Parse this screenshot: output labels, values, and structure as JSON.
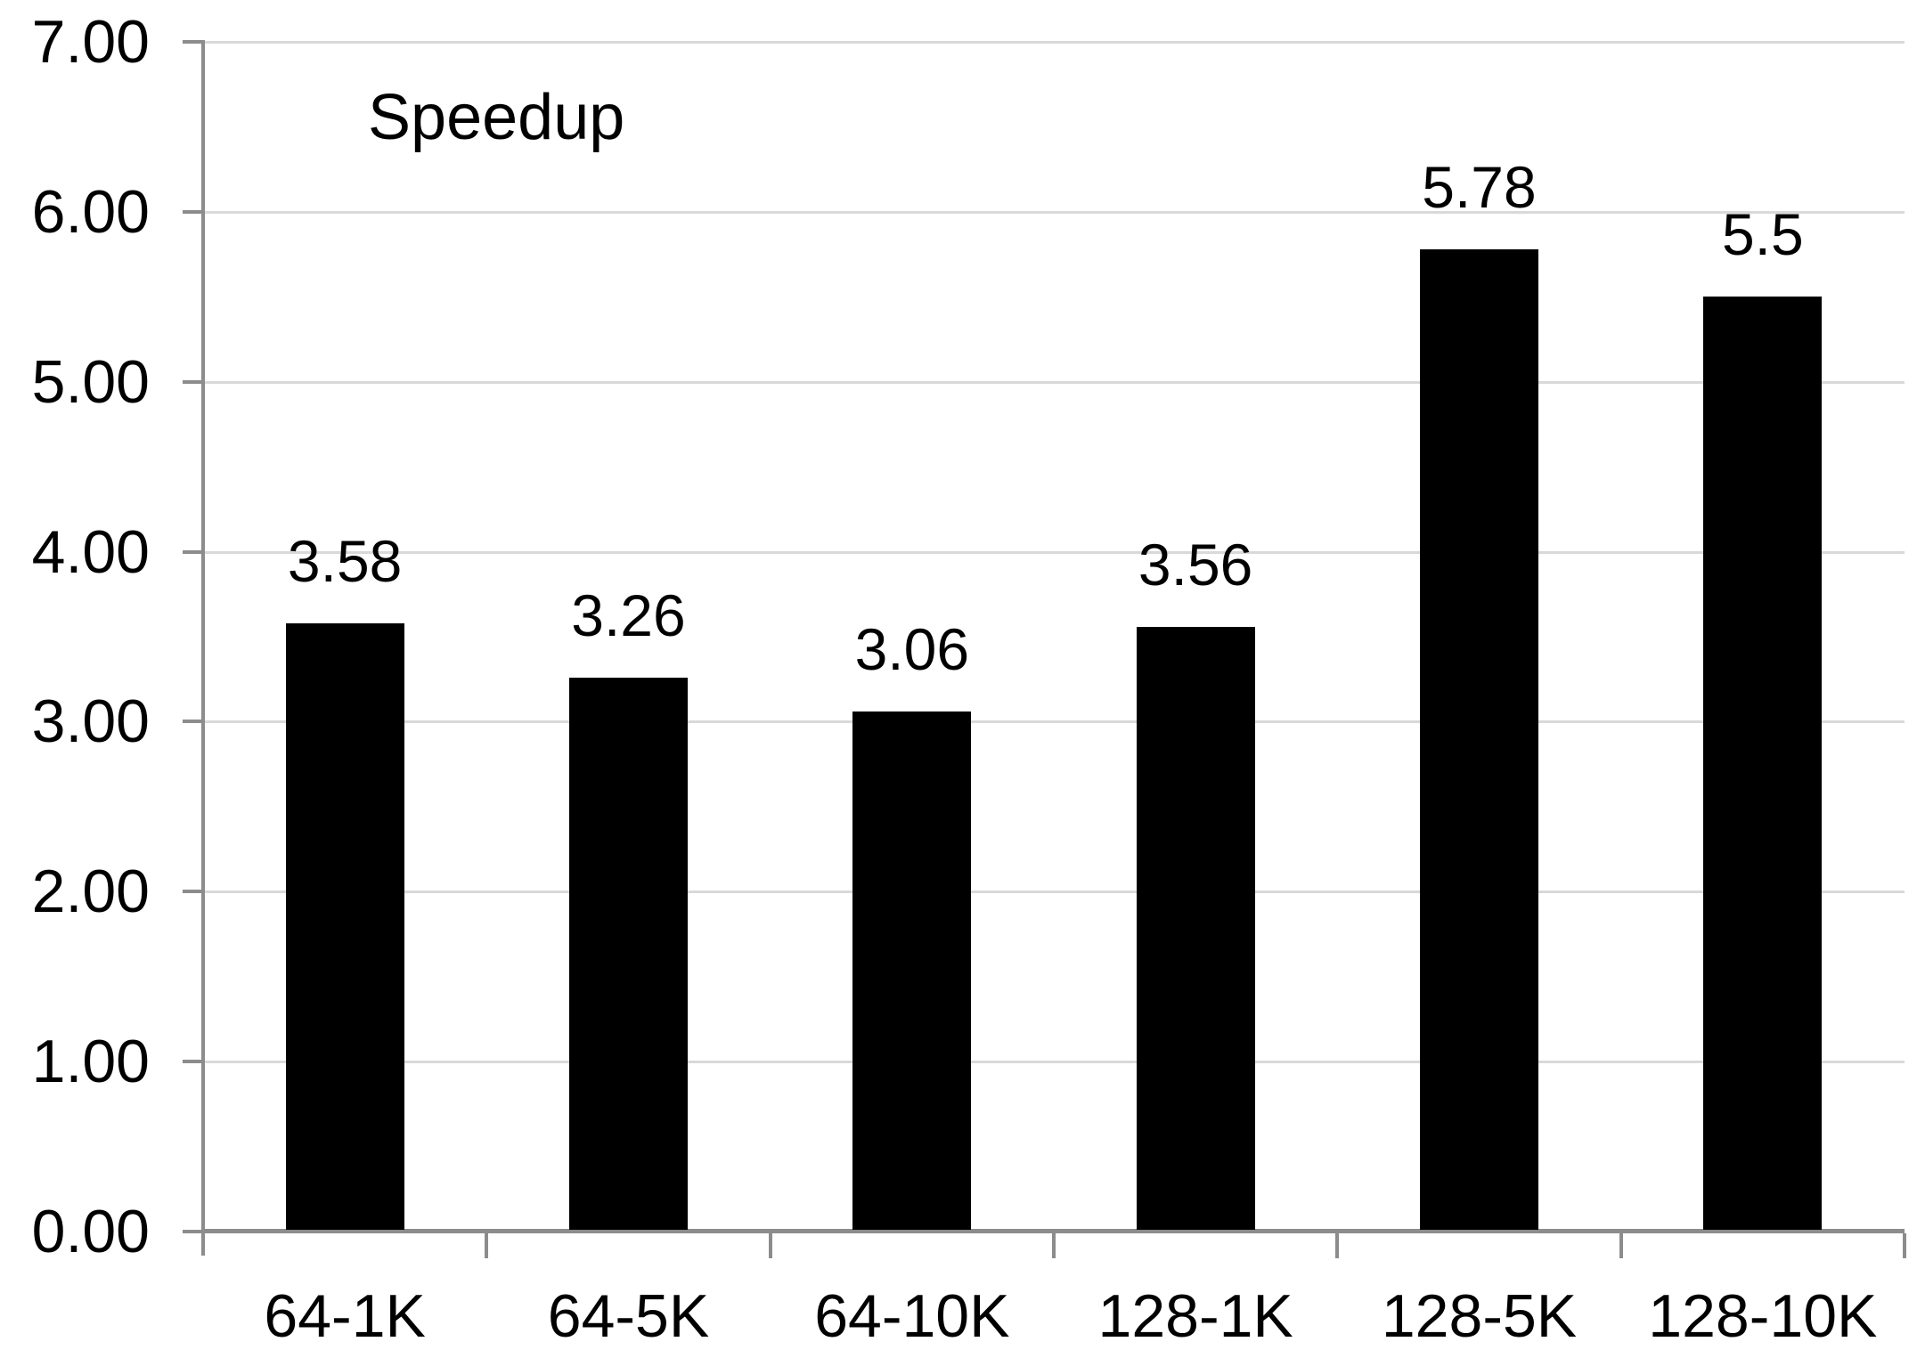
{
  "chart_data": {
    "type": "bar",
    "title": "",
    "xlabel": "",
    "ylabel": "",
    "categories": [
      "64-1K",
      "64-5K",
      "64-10K",
      "128-1K",
      "128-5K",
      "128-10K"
    ],
    "series": [
      {
        "name": "Speedup",
        "values": [
          3.58,
          3.26,
          3.06,
          3.56,
          5.78,
          5.5
        ]
      }
    ],
    "value_labels": [
      "3.58",
      "3.26",
      "3.06",
      "3.56",
      "5.78",
      "5.5"
    ],
    "y_ticks": [
      "0.00",
      "1.00",
      "2.00",
      "3.00",
      "4.00",
      "5.00",
      "6.00",
      "7.00"
    ],
    "ylim": [
      0,
      7
    ],
    "grid": "horizontal",
    "legend": {
      "label": "Speedup",
      "position": "top-left"
    },
    "colors": {
      "bar": "#000000",
      "axis": "#8c8c8c",
      "tick": "#8c8c8c",
      "gridline": "#d9d9d9",
      "text": "#000000",
      "background": "#ffffff"
    }
  }
}
